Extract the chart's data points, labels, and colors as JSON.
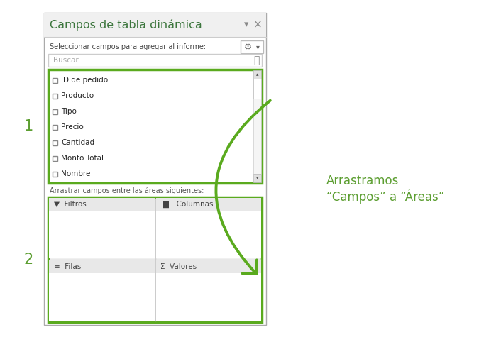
{
  "bg_color": "#ffffff",
  "title_text": "Campos de tabla dinámica",
  "title_color": "#3c763d",
  "title_fontsize": 11.5,
  "subtitle_text": "Seleccionar campos para agregar al informe:",
  "subtitle_color": "#444444",
  "subtitle_fontsize": 7,
  "search_text": "Buscar",
  "search_color": "#aaaaaa",
  "fields": [
    "ID de pedido",
    "Producto",
    "Tipo",
    "Precio",
    "Cantidad",
    "Monto Total",
    "Nombre"
  ],
  "field_color": "#222222",
  "field_fontsize": 7.5,
  "areas_label": "Arrastrar campos entre las áreas siguientes:",
  "areas_label_color": "#555555",
  "areas_label_fontsize": 7,
  "area_header_color": "#444444",
  "area_fontsize": 7.5,
  "label1": "1",
  "label2": "2",
  "label_color": "#5c9e31",
  "annotation_line1": "Arrastramos",
  "annotation_line2": "“Campos” a “Áreas”",
  "annotation_color": "#5c9e31",
  "annotation_fontsize": 12,
  "green_color": "#5aaa1e",
  "panel_border_color": "#aaaaaa",
  "section_border_color": "#5aaa1e"
}
